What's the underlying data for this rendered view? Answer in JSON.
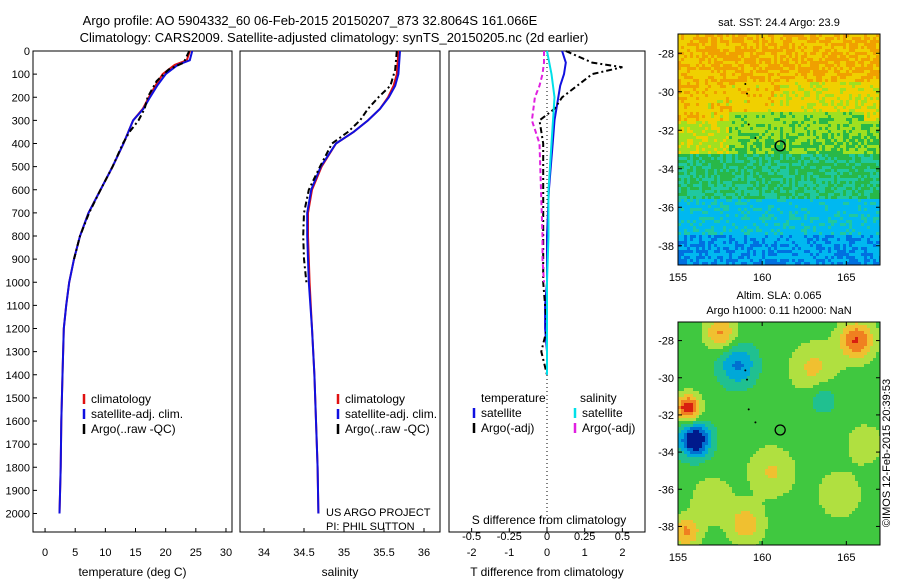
{
  "title": {
    "line1": "Argo profile: AO 5904332_60 06-Feb-2015 20150207_873 32.8064S 161.066E",
    "line2": "Climatology: CARS2009. Satellite-adjusted climatology: synTS_20150205.nc (2d earlier)"
  },
  "colors": {
    "climatology": "#e01010",
    "satellite": "#1010e0",
    "argo": "#000000",
    "salinity_satellite": "#00e0e8",
    "salinity_argo": "#e020e0"
  },
  "chart_data": [
    {
      "type": "line",
      "name": "temperature-profile",
      "xlabel": "temperature (deg C)",
      "xlim": [
        -2,
        31
      ],
      "xticks": [
        0,
        5,
        10,
        15,
        20,
        25,
        30
      ],
      "ylim": [
        0,
        2080
      ],
      "yticks": [
        0,
        100,
        200,
        300,
        400,
        500,
        600,
        700,
        800,
        900,
        1000,
        1100,
        1200,
        1300,
        1400,
        1500,
        1600,
        1700,
        1800,
        1900,
        2000
      ],
      "legend": [
        "climatology",
        "satellite-adj. clim.",
        "Argo(..raw -QC)"
      ],
      "legend_position": "lower-center",
      "series": [
        {
          "name": "climatology",
          "x": [
            24.0,
            23.5,
            21.5,
            19.5,
            18.3,
            17.2,
            16.2,
            14.6,
            13.0,
            11.2,
            9.2,
            7.2,
            5.8,
            4.8,
            4.0,
            3.5,
            3.1,
            2.9,
            2.7,
            2.6,
            2.5,
            2.4
          ],
          "y": [
            0,
            40,
            60,
            100,
            150,
            200,
            250,
            300,
            400,
            500,
            600,
            700,
            800,
            900,
            1000,
            1100,
            1200,
            1400,
            1600,
            1800,
            1900,
            2000
          ]
        },
        {
          "name": "satellite-adj. clim.",
          "x": [
            24.4,
            24.0,
            22.0,
            20.0,
            18.6,
            17.4,
            16.3,
            14.6,
            13.0,
            11.2,
            9.2,
            7.2,
            5.8,
            4.8,
            4.0,
            3.5,
            3.1,
            2.9,
            2.7,
            2.6,
            2.5,
            2.4
          ],
          "y": [
            0,
            40,
            60,
            100,
            150,
            200,
            250,
            300,
            400,
            500,
            600,
            700,
            800,
            900,
            1000,
            1100,
            1200,
            1400,
            1600,
            1800,
            1900,
            2000
          ]
        },
        {
          "name": "Argo(..raw -QC)",
          "x": [
            23.9,
            23.0,
            20.5,
            18.5,
            17.0,
            16.5,
            15.5,
            14.0,
            12.9,
            11.2,
            9.2,
            7.3,
            5.8,
            4.8
          ],
          "y": [
            0,
            50,
            80,
            130,
            200,
            250,
            300,
            350,
            400,
            500,
            600,
            700,
            800,
            900
          ]
        }
      ]
    },
    {
      "type": "line",
      "name": "salinity-profile",
      "xlabel": "salinity",
      "xlim": [
        33.7,
        36.2
      ],
      "xticks": [
        34,
        34.5,
        35,
        35.5,
        36
      ],
      "ylim": [
        0,
        2080
      ],
      "legend": [
        "climatology",
        "satellite-adj. clim.",
        "Argo(..raw -QC)"
      ],
      "legend_position": "lower-center",
      "annotation": [
        "US ARGO PROJECT",
        "PI: PHIL SUTTON"
      ],
      "series": [
        {
          "name": "climatology",
          "x": [
            35.68,
            35.66,
            35.62,
            35.55,
            35.45,
            35.3,
            35.12,
            34.9,
            34.72,
            34.6,
            34.55,
            34.55,
            34.57,
            34.6,
            34.63,
            34.65,
            34.67,
            34.68
          ],
          "y": [
            0,
            100,
            150,
            200,
            250,
            300,
            350,
            400,
            500,
            600,
            700,
            800,
            1000,
            1200,
            1400,
            1600,
            1800,
            2000
          ]
        },
        {
          "name": "satellite-adj. clim.",
          "x": [
            35.7,
            35.68,
            35.64,
            35.56,
            35.45,
            35.3,
            35.12,
            34.9,
            34.71,
            34.59,
            34.54,
            34.54,
            34.56,
            34.6,
            34.63,
            34.65,
            34.67,
            34.68
          ],
          "y": [
            0,
            100,
            150,
            200,
            250,
            300,
            350,
            400,
            500,
            600,
            700,
            800,
            1000,
            1200,
            1400,
            1600,
            1800,
            2000
          ]
        },
        {
          "name": "Argo(..raw -QC)",
          "x": [
            35.66,
            35.64,
            35.58,
            35.43,
            35.3,
            35.2,
            35.05,
            34.85,
            34.7,
            34.56,
            34.5,
            34.49,
            34.5,
            34.53
          ],
          "y": [
            0,
            80,
            150,
            200,
            250,
            300,
            350,
            400,
            500,
            600,
            700,
            800,
            900,
            1000
          ]
        }
      ]
    },
    {
      "type": "line",
      "name": "difference-profile",
      "xlabel": "T difference from climatology",
      "xlabel_top": "S difference from climatology",
      "xlim": [
        -2.6,
        2.6
      ],
      "xticks": [
        -2,
        -1,
        0,
        1,
        2
      ],
      "xticks_s": [
        -0.5,
        -0.25,
        0,
        0.25,
        0.5
      ],
      "ylim": [
        0,
        2080
      ],
      "legend": {
        "temperature": [
          "satellite",
          "Argo(-adj)"
        ],
        "salinity": [
          "satellite",
          "Argo(-adj)"
        ]
      },
      "legend_headers": [
        "temperature",
        "salinity"
      ],
      "legend_position": "lower-center",
      "series": [
        {
          "name": "temperature satellite",
          "x": [
            0.4,
            0.5,
            0.45,
            0.35,
            0.3,
            0.2,
            0.15,
            0.1,
            0.05,
            0.0,
            0.0,
            -0.05,
            -0.05,
            0.0,
            0.0
          ],
          "y": [
            0,
            50,
            100,
            150,
            200,
            300,
            400,
            500,
            600,
            800,
            1000,
            1100,
            1200,
            1300,
            1400
          ]
        },
        {
          "name": "temperature Argo(-adj)",
          "x": [
            0.5,
            1.2,
            2.0,
            1.2,
            0.8,
            0.4,
            0.2,
            -0.2,
            -0.1,
            -0.1,
            -0.1,
            -0.1,
            0.0,
            -0.15,
            0.0
          ],
          "y": [
            0,
            50,
            70,
            100,
            150,
            200,
            250,
            300,
            400,
            600,
            800,
            1000,
            1200,
            1300,
            1400
          ]
        },
        {
          "name": "salinity satellite",
          "x": [
            0.0,
            0.03,
            0.05,
            0.04,
            0.03,
            0.02,
            0.01,
            0.01,
            0.0,
            0.0
          ],
          "y": [
            0,
            100,
            200,
            300,
            400,
            500,
            600,
            800,
            1000,
            1400
          ]
        },
        {
          "name": "salinity Argo(-adj)",
          "x": [
            -0.02,
            -0.02,
            -0.03,
            -0.05,
            -0.08,
            -0.1,
            -0.05,
            -0.04,
            -0.03,
            -0.03,
            -0.02
          ],
          "y": [
            0,
            50,
            100,
            150,
            200,
            300,
            400,
            600,
            800,
            900,
            1000
          ]
        }
      ]
    },
    {
      "type": "heatmap",
      "name": "sst-map",
      "title": "sat. SST: 24.4  Argo: 23.9",
      "xlim": [
        155,
        167
      ],
      "ylim": [
        -39,
        -27
      ],
      "xticks": [
        155,
        160,
        165
      ],
      "yticks": [
        -28,
        -30,
        -32,
        -34,
        -36,
        -38
      ],
      "marker": {
        "lon": 161.07,
        "lat": -32.81
      },
      "colormap": [
        "#00128c",
        "#0070e0",
        "#00b8f0",
        "#20c8a0",
        "#28b848",
        "#a0e020",
        "#f0d000",
        "#f0a000"
      ]
    },
    {
      "type": "heatmap",
      "name": "sla-map",
      "title": [
        "Altim. SLA: 0.065",
        "Argo h1000: 0.11 h2000: NaN"
      ],
      "xlim": [
        155,
        167
      ],
      "ylim": [
        -39,
        -27
      ],
      "xticks": [
        155,
        160,
        165
      ],
      "yticks": [
        -28,
        -30,
        -32,
        -34,
        -36,
        -38
      ],
      "marker": {
        "lon": 161.07,
        "lat": -32.81
      },
      "colormap": [
        "#001a8c",
        "#0070d0",
        "#00a8d8",
        "#20c090",
        "#40c840",
        "#b0e040",
        "#f0c030",
        "#f08020",
        "#d82010"
      ]
    }
  ],
  "credit": "©IMOS 12-Feb-2015 20:39:53"
}
